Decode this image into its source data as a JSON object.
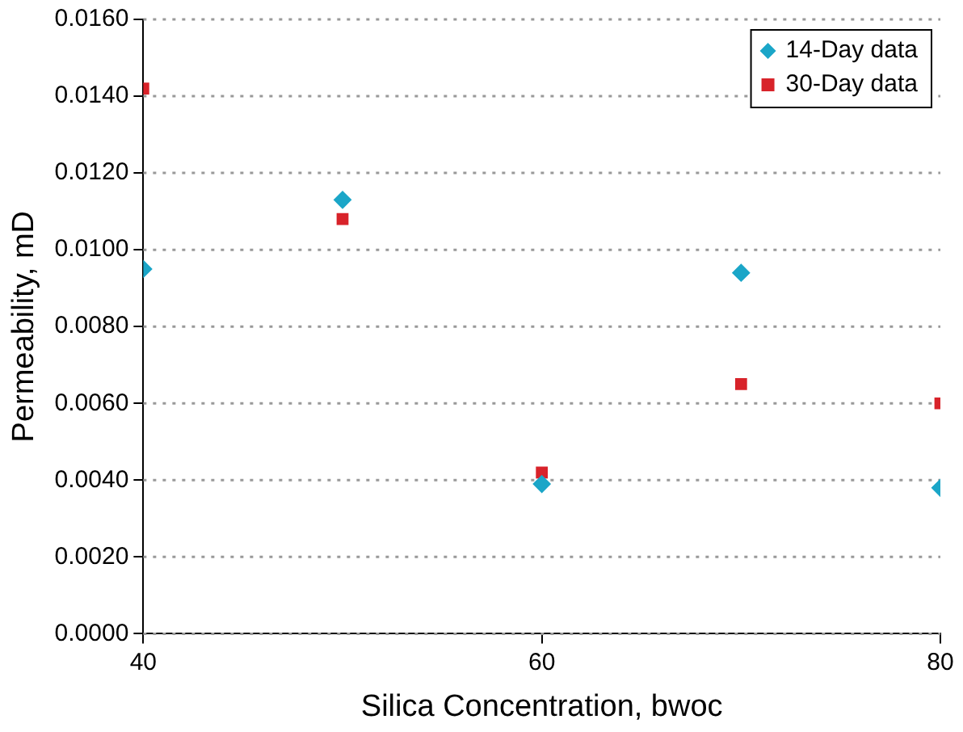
{
  "chart_data": {
    "type": "scatter",
    "xlabel": "Silica Concentration, bwoc",
    "ylabel": "Permeability, mD",
    "xlim": [
      40,
      80
    ],
    "xticks": [
      40,
      60,
      80
    ],
    "ylim": [
      0,
      0.016
    ],
    "yticks": [
      {
        "value": 0,
        "label": "0.0000"
      },
      {
        "value": 0.002,
        "label": "0.0020"
      },
      {
        "value": 0.004,
        "label": "0.0040"
      },
      {
        "value": 0.006,
        "label": "0.0060"
      },
      {
        "value": 0.008,
        "label": "0.0080"
      },
      {
        "value": 0.01,
        "label": "0.0100"
      },
      {
        "value": 0.012,
        "label": "0.0120"
      },
      {
        "value": 0.014,
        "label": "0.0140"
      },
      {
        "value": 0.016,
        "label": "0.0160"
      }
    ],
    "grid": "y",
    "legend": "top right",
    "series": [
      {
        "name": "14-Day data",
        "color": "#1ba6c8",
        "marker": "diamond",
        "x": [
          40,
          50,
          60,
          70,
          80
        ],
        "values": [
          0.0095,
          0.0113,
          0.0039,
          0.0094,
          0.0038
        ]
      },
      {
        "name": "30-Day data",
        "color": "#d8232a",
        "marker": "square",
        "x": [
          40,
          50,
          60,
          70,
          80
        ],
        "values": [
          0.0142,
          0.0108,
          0.0042,
          0.0065,
          0.006
        ]
      }
    ]
  }
}
